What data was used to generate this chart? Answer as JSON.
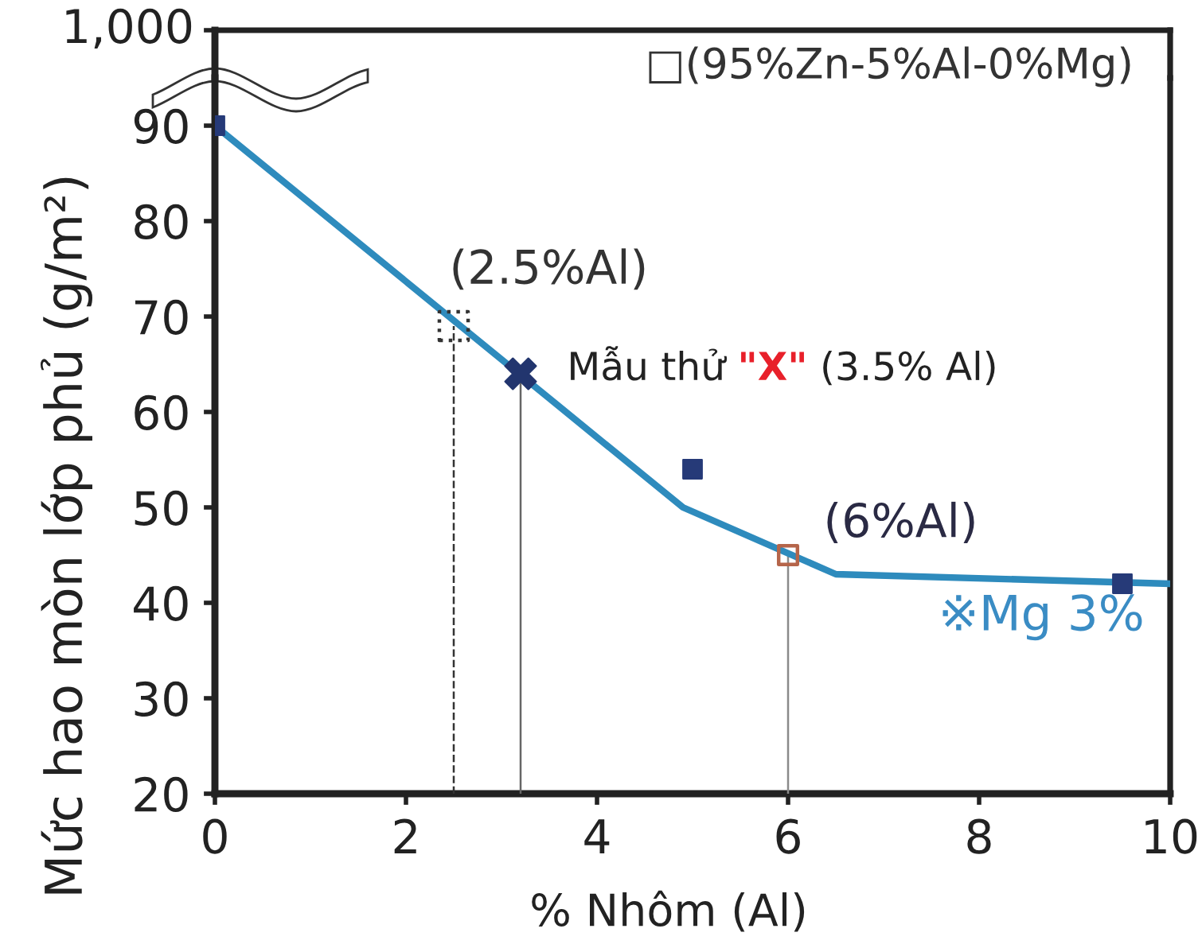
{
  "chart_data": {
    "type": "line",
    "xlabel": "% Nhôm (Al)",
    "ylabel": "Mức hao mòn lớp phủ (g/m²)",
    "xlim": [
      0,
      10
    ],
    "xticks": [
      0,
      2,
      4,
      6,
      8,
      10
    ],
    "ylim": [
      20,
      95
    ],
    "yticks": [
      20,
      30,
      40,
      50,
      60,
      70,
      80,
      90
    ],
    "grid": false,
    "series": [
      {
        "x": [
          2.5,
          2.5
        ],
        "values": [
          20,
          69
        ],
        "color": "#333333",
        "line_style": "dashed",
        "marker": "none"
      },
      {
        "x": [
          3.2,
          3.2
        ],
        "values": [
          20,
          64
        ],
        "color": "#666666",
        "line_style": "solid",
        "marker": "none"
      },
      {
        "x": [
          6,
          6
        ],
        "values": [
          20,
          45
        ],
        "color": "#8a8a8a",
        "line_style": "solid",
        "marker": "none"
      },
      {
        "x": [
          0,
          4.9,
          6.5,
          10
        ],
        "values": [
          90,
          50,
          43,
          42
        ],
        "color": "#2e8bbd",
        "line_style": "solid",
        "marker": "none"
      },
      {
        "type": "scatter",
        "x": [
          0,
          5,
          9.5
        ],
        "values": [
          90,
          54,
          42
        ],
        "color": "#263a78",
        "marker": "square"
      },
      {
        "type": "scatter",
        "x": [
          2.5
        ],
        "values": [
          69
        ],
        "color": "#333333",
        "marker": "square",
        "line_style": "dotted"
      },
      {
        "type": "scatter",
        "x": [
          6
        ],
        "values": [
          45
        ],
        "color": "#b5654a",
        "marker": "square",
        "line_style": "solid"
      },
      {
        "type": "scatter",
        "x": [
          3.2
        ],
        "values": [
          64
        ],
        "color": "#22356e",
        "marker": "cross"
      }
    ],
    "annotations": [
      "1,000",
      "□(95%Zn-5%Al-0%Mg)",
      {
        "text": "(2.5%Al)",
        "x": 2.5,
        "y": 69
      },
      {
        "text": "Mẫu thử \"X\" (3.5% Al)",
        "x": 3.2,
        "y": 64
      },
      {
        "text": "(6%Al)",
        "x": 6,
        "y": 45
      },
      {
        "text": "※Mg 3%",
        "x": 9.5,
        "y": 42
      }
    ]
  }
}
